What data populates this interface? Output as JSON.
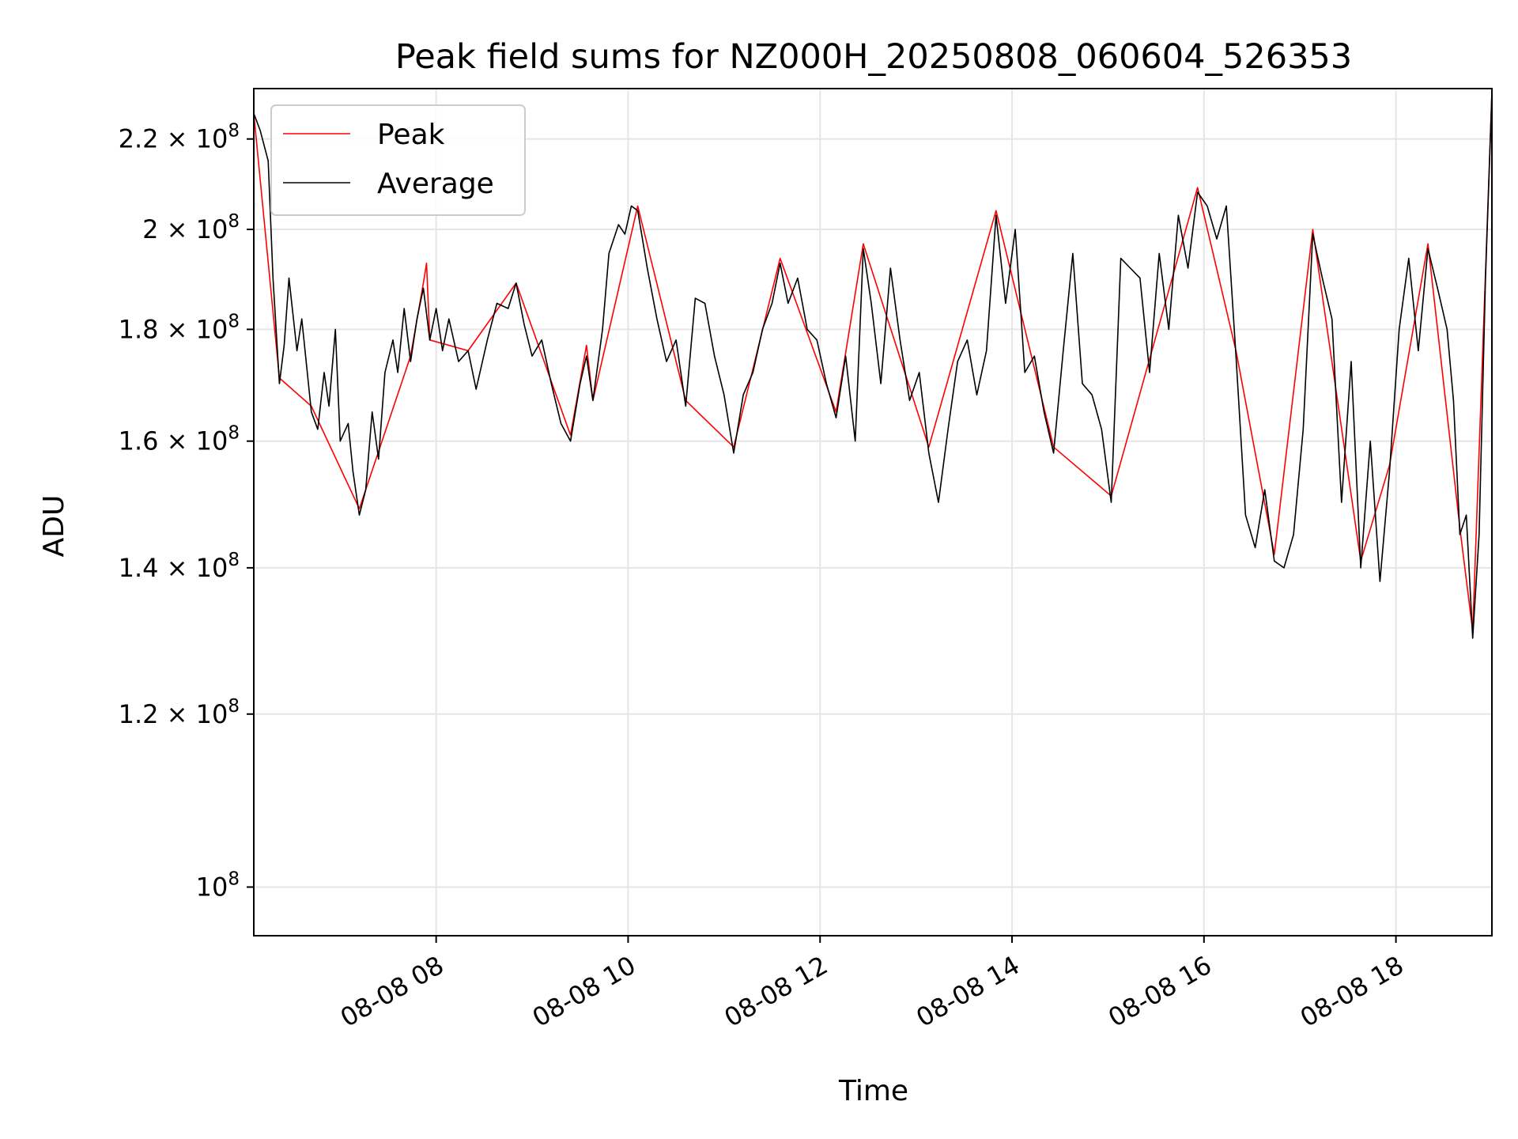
{
  "chart_data": {
    "type": "line",
    "title": "Peak field sums for NZ000H_20250808_060604_526353",
    "xlabel": "Time",
    "ylabel": "ADU",
    "x_range": [
      "2025-08-08 06:06",
      "2025-08-08 19:00"
    ],
    "y_range": [
      95000000,
      232000000
    ],
    "y_scale": "log",
    "grid": true,
    "legend_position": "upper-left",
    "x_ticks": [
      "08-08 08",
      "08-08 10",
      "08-08 12",
      "08-08 14",
      "08-08 16",
      "08-08 18"
    ],
    "x_tick_values": [
      "2025-08-08 08:00",
      "2025-08-08 10:00",
      "2025-08-08 12:00",
      "2025-08-08 14:00",
      "2025-08-08 16:00",
      "2025-08-08 18:00"
    ],
    "y_ticks": [
      {
        "value": 100000000,
        "mantissa": "",
        "exp": "8"
      },
      {
        "value": 120000000,
        "mantissa": "1.2",
        "exp": "8"
      },
      {
        "value": 140000000,
        "mantissa": "1.4",
        "exp": "8"
      },
      {
        "value": 160000000,
        "mantissa": "1.6",
        "exp": "8"
      },
      {
        "value": 180000000,
        "mantissa": "1.8",
        "exp": "8"
      },
      {
        "value": 200000000,
        "mantissa": "2",
        "exp": "8"
      },
      {
        "value": 220000000,
        "mantissa": "2.2",
        "exp": "8"
      }
    ],
    "series": [
      {
        "name": "Average",
        "color": "#000000",
        "points": [
          [
            "2025-08-08 06:06",
            226
          ],
          [
            "2025-08-08 06:10",
            222
          ],
          [
            "2025-08-08 06:15",
            215
          ],
          [
            "2025-08-08 06:18",
            190
          ],
          [
            "2025-08-08 06:22",
            170
          ],
          [
            "2025-08-08 06:25",
            177
          ],
          [
            "2025-08-08 06:28",
            190
          ],
          [
            "2025-08-08 06:33",
            176
          ],
          [
            "2025-08-08 06:36",
            182
          ],
          [
            "2025-08-08 06:42",
            165
          ],
          [
            "2025-08-08 06:46",
            162
          ],
          [
            "2025-08-08 06:50",
            172
          ],
          [
            "2025-08-08 06:53",
            166
          ],
          [
            "2025-08-08 06:57",
            180
          ],
          [
            "2025-08-08 07:00",
            160
          ],
          [
            "2025-08-08 07:05",
            163
          ],
          [
            "2025-08-08 07:08",
            155
          ],
          [
            "2025-08-08 07:12",
            148
          ],
          [
            "2025-08-08 07:16",
            152
          ],
          [
            "2025-08-08 07:20",
            165
          ],
          [
            "2025-08-08 07:24",
            157
          ],
          [
            "2025-08-08 07:28",
            172
          ],
          [
            "2025-08-08 07:33",
            178
          ],
          [
            "2025-08-08 07:36",
            172
          ],
          [
            "2025-08-08 07:40",
            184
          ],
          [
            "2025-08-08 07:44",
            174
          ],
          [
            "2025-08-08 07:48",
            182
          ],
          [
            "2025-08-08 07:52",
            188
          ],
          [
            "2025-08-08 07:56",
            178
          ],
          [
            "2025-08-08 08:00",
            184
          ],
          [
            "2025-08-08 08:04",
            176
          ],
          [
            "2025-08-08 08:08",
            182
          ],
          [
            "2025-08-08 08:14",
            174
          ],
          [
            "2025-08-08 08:20",
            176
          ],
          [
            "2025-08-08 08:25",
            169
          ],
          [
            "2025-08-08 08:32",
            178
          ],
          [
            "2025-08-08 08:38",
            185
          ],
          [
            "2025-08-08 08:45",
            184
          ],
          [
            "2025-08-08 08:50",
            189
          ],
          [
            "2025-08-08 08:55",
            181
          ],
          [
            "2025-08-08 09:00",
            175
          ],
          [
            "2025-08-08 09:06",
            178
          ],
          [
            "2025-08-08 09:12",
            170
          ],
          [
            "2025-08-08 09:18",
            163
          ],
          [
            "2025-08-08 09:24",
            160
          ],
          [
            "2025-08-08 09:30",
            170
          ],
          [
            "2025-08-08 09:34",
            175
          ],
          [
            "2025-08-08 09:38",
            167
          ],
          [
            "2025-08-08 09:44",
            180
          ],
          [
            "2025-08-08 09:48",
            195
          ],
          [
            "2025-08-08 09:54",
            201
          ],
          [
            "2025-08-08 09:58",
            199
          ],
          [
            "2025-08-08 10:02",
            205
          ],
          [
            "2025-08-08 10:06",
            204
          ],
          [
            "2025-08-08 10:12",
            192
          ],
          [
            "2025-08-08 10:18",
            182
          ],
          [
            "2025-08-08 10:24",
            174
          ],
          [
            "2025-08-08 10:30",
            178
          ],
          [
            "2025-08-08 10:36",
            166
          ],
          [
            "2025-08-08 10:42",
            186
          ],
          [
            "2025-08-08 10:48",
            185
          ],
          [
            "2025-08-08 10:54",
            175
          ],
          [
            "2025-08-08 11:00",
            168
          ],
          [
            "2025-08-08 11:06",
            158
          ],
          [
            "2025-08-08 11:12",
            168
          ],
          [
            "2025-08-08 11:18",
            172
          ],
          [
            "2025-08-08 11:24",
            180
          ],
          [
            "2025-08-08 11:30",
            185
          ],
          [
            "2025-08-08 11:35",
            193
          ],
          [
            "2025-08-08 11:40",
            185
          ],
          [
            "2025-08-08 11:46",
            190
          ],
          [
            "2025-08-08 11:52",
            180
          ],
          [
            "2025-08-08 11:58",
            178
          ],
          [
            "2025-08-08 12:04",
            170
          ],
          [
            "2025-08-08 12:10",
            164
          ],
          [
            "2025-08-08 12:16",
            175
          ],
          [
            "2025-08-08 12:22",
            160
          ],
          [
            "2025-08-08 12:27",
            196
          ],
          [
            "2025-08-08 12:32",
            185
          ],
          [
            "2025-08-08 12:38",
            170
          ],
          [
            "2025-08-08 12:44",
            192
          ],
          [
            "2025-08-08 12:50",
            178
          ],
          [
            "2025-08-08 12:56",
            167
          ],
          [
            "2025-08-08 13:02",
            172
          ],
          [
            "2025-08-08 13:08",
            158
          ],
          [
            "2025-08-08 13:14",
            150
          ],
          [
            "2025-08-08 13:20",
            162
          ],
          [
            "2025-08-08 13:26",
            174
          ],
          [
            "2025-08-08 13:32",
            178
          ],
          [
            "2025-08-08 13:38",
            168
          ],
          [
            "2025-08-08 13:44",
            176
          ],
          [
            "2025-08-08 13:50",
            203
          ],
          [
            "2025-08-08 13:56",
            185
          ],
          [
            "2025-08-08 14:02",
            200
          ],
          [
            "2025-08-08 14:08",
            172
          ],
          [
            "2025-08-08 14:14",
            175
          ],
          [
            "2025-08-08 14:20",
            165
          ],
          [
            "2025-08-08 14:26",
            158
          ],
          [
            "2025-08-08 14:32",
            176
          ],
          [
            "2025-08-08 14:38",
            195
          ],
          [
            "2025-08-08 14:44",
            170
          ],
          [
            "2025-08-08 14:50",
            168
          ],
          [
            "2025-08-08 14:56",
            162
          ],
          [
            "2025-08-08 15:02",
            150
          ],
          [
            "2025-08-08 15:08",
            194
          ],
          [
            "2025-08-08 15:14",
            192
          ],
          [
            "2025-08-08 15:20",
            190
          ],
          [
            "2025-08-08 15:26",
            172
          ],
          [
            "2025-08-08 15:32",
            195
          ],
          [
            "2025-08-08 15:38",
            180
          ],
          [
            "2025-08-08 15:44",
            203
          ],
          [
            "2025-08-08 15:50",
            192
          ],
          [
            "2025-08-08 15:56",
            208
          ],
          [
            "2025-08-08 16:02",
            205
          ],
          [
            "2025-08-08 16:08",
            198
          ],
          [
            "2025-08-08 16:14",
            205
          ],
          [
            "2025-08-08 16:20",
            175
          ],
          [
            "2025-08-08 16:26",
            148
          ],
          [
            "2025-08-08 16:32",
            143
          ],
          [
            "2025-08-08 16:38",
            152
          ],
          [
            "2025-08-08 16:44",
            141
          ],
          [
            "2025-08-08 16:50",
            140
          ],
          [
            "2025-08-08 16:56",
            145
          ],
          [
            "2025-08-08 17:02",
            162
          ],
          [
            "2025-08-08 17:08",
            199
          ],
          [
            "2025-08-08 17:14",
            190
          ],
          [
            "2025-08-08 17:20",
            182
          ],
          [
            "2025-08-08 17:26",
            150
          ],
          [
            "2025-08-08 17:32",
            174
          ],
          [
            "2025-08-08 17:38",
            140
          ],
          [
            "2025-08-08 17:44",
            160
          ],
          [
            "2025-08-08 17:50",
            138
          ],
          [
            "2025-08-08 17:56",
            155
          ],
          [
            "2025-08-08 18:02",
            180
          ],
          [
            "2025-08-08 18:08",
            194
          ],
          [
            "2025-08-08 18:14",
            176
          ],
          [
            "2025-08-08 18:20",
            196
          ],
          [
            "2025-08-08 18:26",
            188
          ],
          [
            "2025-08-08 18:32",
            180
          ],
          [
            "2025-08-08 18:36",
            167
          ],
          [
            "2025-08-08 18:40",
            145
          ],
          [
            "2025-08-08 18:44",
            148
          ],
          [
            "2025-08-08 18:48",
            130
          ],
          [
            "2025-08-08 18:52",
            145
          ],
          [
            "2025-08-08 18:56",
            190
          ],
          [
            "2025-08-08 19:00",
            231
          ]
        ]
      },
      {
        "name": "Peak",
        "color": "#ff0000",
        "points": [
          [
            "2025-08-08 06:06",
            226
          ],
          [
            "2025-08-08 06:22",
            171
          ],
          [
            "2025-08-08 06:42",
            166
          ],
          [
            "2025-08-08 07:12",
            149
          ],
          [
            "2025-08-08 07:44",
            175
          ],
          [
            "2025-08-08 07:52",
            189
          ],
          [
            "2025-08-08 07:54",
            193
          ],
          [
            "2025-08-08 07:56",
            178
          ],
          [
            "2025-08-08 08:20",
            176
          ],
          [
            "2025-08-08 08:50",
            189
          ],
          [
            "2025-08-08 09:24",
            161
          ],
          [
            "2025-08-08 09:34",
            177
          ],
          [
            "2025-08-08 09:38",
            167
          ],
          [
            "2025-08-08 10:06",
            205
          ],
          [
            "2025-08-08 10:36",
            167
          ],
          [
            "2025-08-08 11:06",
            159
          ],
          [
            "2025-08-08 11:35",
            194
          ],
          [
            "2025-08-08 12:10",
            165
          ],
          [
            "2025-08-08 12:27",
            197
          ],
          [
            "2025-08-08 13:08",
            159
          ],
          [
            "2025-08-08 13:50",
            204
          ],
          [
            "2025-08-08 14:26",
            159
          ],
          [
            "2025-08-08 15:02",
            151
          ],
          [
            "2025-08-08 15:56",
            209
          ],
          [
            "2025-08-08 16:20",
            176
          ],
          [
            "2025-08-08 16:44",
            142
          ],
          [
            "2025-08-08 17:08",
            200
          ],
          [
            "2025-08-08 17:38",
            141
          ],
          [
            "2025-08-08 17:56",
            156
          ],
          [
            "2025-08-08 18:20",
            197
          ],
          [
            "2025-08-08 18:40",
            146
          ],
          [
            "2025-08-08 18:48",
            131
          ],
          [
            "2025-08-08 19:00",
            231
          ]
        ]
      }
    ]
  }
}
